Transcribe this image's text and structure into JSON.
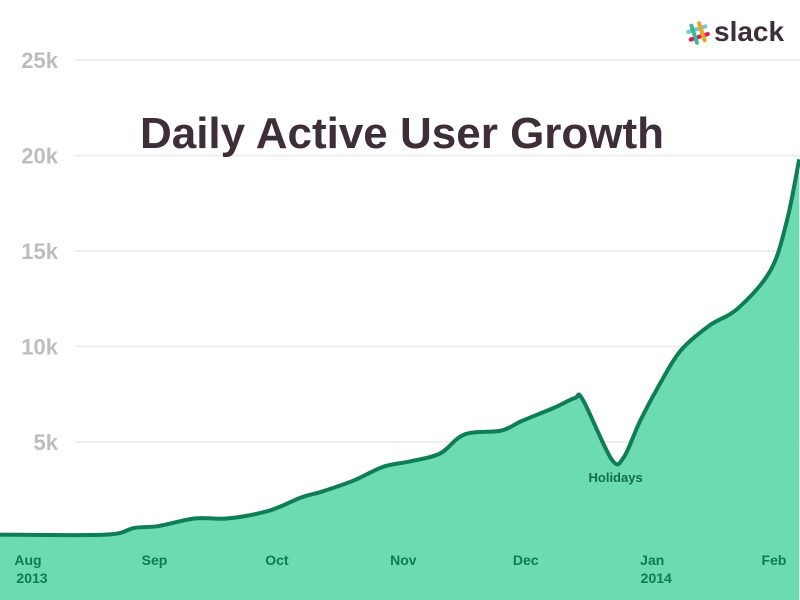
{
  "logo": {
    "text": "slack"
  },
  "chart_data": {
    "type": "area",
    "title": "Daily Active User Growth",
    "xlabel": "",
    "ylabel": "",
    "ylim": [
      0,
      25000
    ],
    "yticks": [
      {
        "value": 5000,
        "label": "5k"
      },
      {
        "value": 10000,
        "label": "10k"
      },
      {
        "value": 15000,
        "label": "15k"
      },
      {
        "value": 20000,
        "label": "20k"
      },
      {
        "value": 25000,
        "label": "25k"
      }
    ],
    "xticks": [
      {
        "date": "2013-08-01",
        "label": "Aug",
        "sublabel": "2013"
      },
      {
        "date": "2013-09-01",
        "label": "Sep"
      },
      {
        "date": "2013-10-01",
        "label": "Oct"
      },
      {
        "date": "2013-11-01",
        "label": "Nov"
      },
      {
        "date": "2013-12-01",
        "label": "Dec"
      },
      {
        "date": "2014-01-01",
        "label": "Jan",
        "sublabel": "2014"
      },
      {
        "date": "2014-02-01",
        "label": "Feb"
      }
    ],
    "grid": true,
    "colors": {
      "line": "#0f7d55",
      "fill": "#6ddbb0",
      "grid": "#eeeeee"
    },
    "annotations": [
      {
        "date": "2013-12-24",
        "value": 4100,
        "text": "Holidays"
      }
    ],
    "points": [
      {
        "x": "2013-07-26",
        "y": 150
      },
      {
        "x": "2013-08-21",
        "y": 150
      },
      {
        "x": "2013-08-28",
        "y": 500
      },
      {
        "x": "2013-09-03",
        "y": 600
      },
      {
        "x": "2013-09-12",
        "y": 1000
      },
      {
        "x": "2013-09-20",
        "y": 1000
      },
      {
        "x": "2013-09-30",
        "y": 1400
      },
      {
        "x": "2013-10-08",
        "y": 2100
      },
      {
        "x": "2013-10-13",
        "y": 2400
      },
      {
        "x": "2013-10-21",
        "y": 3000
      },
      {
        "x": "2013-10-28",
        "y": 3700
      },
      {
        "x": "2013-11-04",
        "y": 4000
      },
      {
        "x": "2013-11-11",
        "y": 4400
      },
      {
        "x": "2013-11-17",
        "y": 5400
      },
      {
        "x": "2013-11-26",
        "y": 5600
      },
      {
        "x": "2013-12-01",
        "y": 6100
      },
      {
        "x": "2013-12-09",
        "y": 6800
      },
      {
        "x": "2013-12-14",
        "y": 7300
      },
      {
        "x": "2013-12-16",
        "y": 7200
      },
      {
        "x": "2013-12-23",
        "y": 4100
      },
      {
        "x": "2013-12-26",
        "y": 4200
      },
      {
        "x": "2013-12-30",
        "y": 6100
      },
      {
        "x": "2014-01-04",
        "y": 8100
      },
      {
        "x": "2014-01-09",
        "y": 9800
      },
      {
        "x": "2014-01-16",
        "y": 11100
      },
      {
        "x": "2014-01-23",
        "y": 12000
      },
      {
        "x": "2014-01-31",
        "y": 14000
      },
      {
        "x": "2014-02-04",
        "y": 16600
      },
      {
        "x": "2014-02-07",
        "y": 19800
      }
    ]
  }
}
